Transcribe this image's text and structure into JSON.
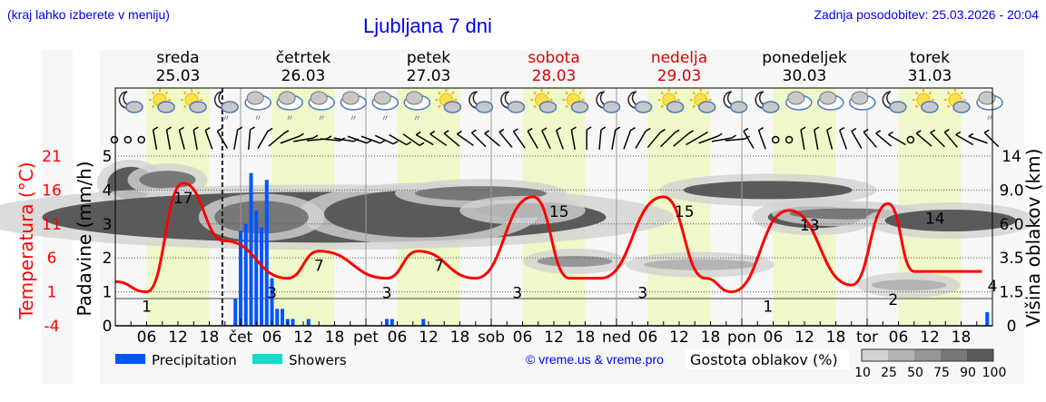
{
  "header": {
    "region_hint": "(kraj lahko izberete v meniju)",
    "title": "Ljubljana 7 dni",
    "last_update": "Zadnja posodobitev: 25.03.2026 - 20:04"
  },
  "days": [
    {
      "name": "sreda",
      "date": "25.03",
      "weekend": false
    },
    {
      "name": "četrtek",
      "date": "26.03",
      "weekend": false
    },
    {
      "name": "petek",
      "date": "27.03",
      "weekend": false
    },
    {
      "name": "sobota",
      "date": "28.03",
      "weekend": true
    },
    {
      "name": "nedelja",
      "date": "29.03",
      "weekend": true
    },
    {
      "name": "ponedeljek",
      "date": "30.03",
      "weekend": false
    },
    {
      "name": "torek",
      "date": "31.03",
      "weekend": false
    }
  ],
  "axes": {
    "temp_label": "Temperatura (°C)",
    "temp_ticks": [
      "21",
      "16",
      "11",
      "6",
      "1",
      "-4"
    ],
    "precip_label": "Padavine (mm/h)",
    "precip_ticks": [
      "5",
      "4",
      "3",
      "2",
      "1",
      "0"
    ],
    "cloud_label": "Višina oblakov (km)",
    "cloud_ticks": [
      "14",
      "9.0",
      "6.0",
      "3.5",
      "1.5",
      "0"
    ],
    "x_ticks": [
      "06",
      "12",
      "18",
      "čet",
      "06",
      "12",
      "18",
      "pet",
      "06",
      "12",
      "18",
      "sob",
      "06",
      "12",
      "18",
      "ned",
      "06",
      "12",
      "18",
      "pon",
      "06",
      "12",
      "18",
      "tor",
      "06",
      "12",
      "18"
    ]
  },
  "legend": {
    "precipitation_label": "Precipitation",
    "precipitation_color": "#0055ff",
    "showers_label": "Showers",
    "showers_color": "#11ddcc",
    "credit": "© vreme.us & vreme.pro",
    "cloud_density_label": "Gostota oblakov (%)",
    "cloud_density_ticks": [
      "10",
      "25",
      "50",
      "75",
      "90",
      "100"
    ],
    "cloud_density_colors": [
      "#d2d2d2",
      "#b4b4b4",
      "#969696",
      "#787878",
      "#5a5a5a"
    ]
  },
  "colors": {
    "temperature": "#ff0000",
    "day_band": "#eef8c8",
    "night_band": "#f7f7f7",
    "weekend_text": "#dd0000",
    "link": "#0000ee"
  },
  "weather_icons": [
    "moon-cloud",
    "sun-cloud",
    "sun-cloud",
    "moon-cloud-rain",
    "cloud-rain",
    "cloud-rain",
    "cloud-rain",
    "cloud-rain",
    "cloud-rain",
    "cloud-rain",
    "sun-cloud",
    "moon-cloud",
    "moon-cloud",
    "sun-cloud",
    "sun-cloud",
    "moon-cloud",
    "moon-cloud",
    "sun-cloud",
    "sun-cloud",
    "moon-cloud",
    "moon-cloud",
    "cloud",
    "cloud",
    "cloud",
    "moon-cloud",
    "sun-cloud",
    "sun-cloud",
    "cloud-rain"
  ],
  "chart_data": {
    "type": "line",
    "title": "Ljubljana 7 dni",
    "xlabel": "",
    "ylabel": "Temperatura (°C) / Padavine (mm/h)",
    "ylim_temp": [
      -4,
      21
    ],
    "ylim_precip": [
      0,
      5
    ],
    "ylim_cloud_km": [
      0,
      14
    ],
    "temperature_series": {
      "name": "Temperature",
      "hours": [
        0,
        6,
        13,
        21,
        33,
        39,
        52,
        58,
        69,
        80,
        87,
        93,
        105,
        113,
        118,
        129,
        141,
        148,
        153,
        164,
        166
      ],
      "values": [
        2.5,
        1,
        17,
        8.5,
        3,
        7,
        3,
        7,
        3,
        15,
        3,
        3,
        15,
        3,
        1,
        13,
        2,
        14,
        4,
        4,
        4
      ]
    },
    "temp_labels": [
      {
        "hour": 6,
        "value": "1"
      },
      {
        "hour": 13,
        "value": "17"
      },
      {
        "hour": 30,
        "value": "3"
      },
      {
        "hour": 39,
        "value": "7"
      },
      {
        "hour": 52,
        "value": "3"
      },
      {
        "hour": 62,
        "value": "7"
      },
      {
        "hour": 77,
        "value": "3"
      },
      {
        "hour": 85,
        "value": "15"
      },
      {
        "hour": 101,
        "value": "3"
      },
      {
        "hour": 109,
        "value": "15"
      },
      {
        "hour": 125,
        "value": "1"
      },
      {
        "hour": 133,
        "value": "13"
      },
      {
        "hour": 149,
        "value": "2"
      },
      {
        "hour": 157,
        "value": "14"
      },
      {
        "hour": 168,
        "value": "4"
      }
    ],
    "precipitation_series": {
      "name": "Precipitation",
      "hours": [
        23,
        24,
        25,
        26,
        27,
        28,
        29,
        30,
        31,
        32,
        33,
        34,
        37,
        52,
        53,
        59,
        167
      ],
      "values": [
        0.8,
        2.8,
        3.0,
        4.5,
        3.4,
        2.9,
        4.3,
        1.4,
        0.5,
        0.5,
        0.2,
        0.2,
        0.2,
        0.2,
        0.2,
        0.2,
        0.4
      ]
    },
    "showers_series": {
      "name": "Showers",
      "hours": [],
      "values": []
    },
    "current_time_hour": 20
  }
}
